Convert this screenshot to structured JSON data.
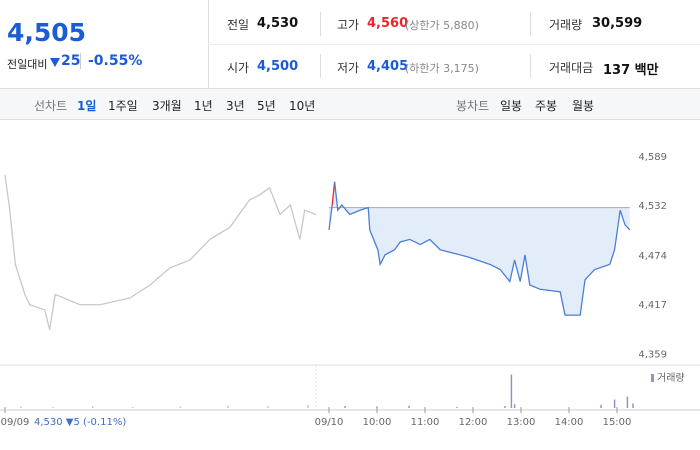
{
  "quote": {
    "price": "4,505",
    "change_label": "전일대비",
    "change": "25",
    "change_pct": "-0.55%"
  },
  "info": {
    "prev_close": {
      "label": "전일",
      "value": "4,530"
    },
    "high": {
      "label": "고가",
      "value": "4,560",
      "limit": "(상한가 5,880)"
    },
    "volume": {
      "label": "거래량",
      "value": "30,599"
    },
    "open": {
      "label": "시가",
      "value": "4,500"
    },
    "low": {
      "label": "저가",
      "value": "4,405",
      "limit": "(하한가 3,175)"
    },
    "amount": {
      "label": "거래대금",
      "value": "137 백만"
    }
  },
  "tabs": {
    "line_label": "선차트",
    "line_options": [
      "1일",
      "1주일",
      "3개월",
      "1년",
      "3년",
      "5년",
      "10년"
    ],
    "candle_label": "봉차트",
    "candle_options": [
      "일봉",
      "주봉",
      "월봉"
    ]
  },
  "chart_data": [
    {
      "type": "line",
      "color": "#c8c8c8",
      "ylim": [
        4347,
        4626
      ],
      "xlim": [
        540,
        930
      ],
      "xticks": [
        {
          "value": 540,
          "label": "09/09"
        }
      ],
      "annotation": "4,530 ▼5 (-0.11%)",
      "x": [
        540,
        546,
        553,
        565,
        571,
        590,
        596,
        603,
        634,
        659,
        697,
        722,
        747,
        772,
        797,
        822,
        847,
        860,
        872,
        885,
        898,
        910,
        916,
        930
      ],
      "values": [
        4568,
        4527,
        4464,
        4429,
        4417,
        4411,
        4388,
        4429,
        4417,
        4417,
        4425,
        4440,
        4460,
        4469,
        4493,
        4507,
        4539,
        4545,
        4553,
        4522,
        4533,
        4493,
        4527,
        4522
      ]
    },
    {
      "type": "line",
      "color": "#4a7fd6",
      "up_color": "#e8262b",
      "fill": "#e3ecf9",
      "reference": 4530,
      "ylim": [
        4347,
        4626
      ],
      "xlim": [
        540,
        930
      ],
      "yticks": [
        {
          "value": 4359,
          "label": "4,359"
        },
        {
          "value": 4417,
          "label": "4,417"
        },
        {
          "value": 4474,
          "label": "4,474"
        },
        {
          "value": 4532,
          "label": "4,532"
        },
        {
          "value": 4589,
          "label": "4,589"
        }
      ],
      "xticks": [
        {
          "value": 540,
          "label": "09/10"
        },
        {
          "value": 600,
          "label": "10:00"
        },
        {
          "value": 660,
          "label": "11:00"
        },
        {
          "value": 720,
          "label": "12:00"
        },
        {
          "value": 780,
          "label": "13:00"
        },
        {
          "value": 840,
          "label": "14:00"
        },
        {
          "value": 900,
          "label": "15:00"
        }
      ],
      "x": [
        540,
        544,
        547,
        551,
        556,
        566,
        579,
        589,
        591,
        601,
        604,
        610,
        622,
        629,
        641,
        654,
        666,
        679,
        704,
        716,
        741,
        754,
        766,
        772,
        779,
        785,
        791,
        804,
        829,
        835,
        854,
        860,
        872,
        891,
        897,
        904,
        910,
        916
      ],
      "values": [
        4504,
        4533,
        4560,
        4527,
        4533,
        4522,
        4527,
        4530,
        4504,
        4481,
        4464,
        4475,
        4481,
        4490,
        4493,
        4487,
        4493,
        4481,
        4475,
        4472,
        4464,
        4458,
        4444,
        4469,
        4444,
        4475,
        4440,
        4435,
        4432,
        4405,
        4405,
        4446,
        4458,
        4464,
        4481,
        4527,
        4510,
        4504
      ]
    },
    {
      "type": "bar",
      "title": "거래량",
      "ylim": [
        0,
        100
      ],
      "xlim": [
        540,
        930
      ],
      "series": [
        {
          "color": "#c8c8c8",
          "x": [
            560,
            600,
            650,
            700,
            760,
            820,
            870,
            920
          ],
          "values": [
            4,
            3,
            5,
            3,
            4,
            6,
            5,
            8
          ]
        },
        {
          "color": "#9b8fc4",
          "x": [
            560,
            600,
            640,
            700,
            760,
            768,
            772,
            880,
            897,
            913,
            920
          ],
          "values": [
            5,
            4,
            6,
            3,
            5,
            88,
            10,
            8,
            22,
            30,
            12
          ]
        }
      ]
    }
  ]
}
